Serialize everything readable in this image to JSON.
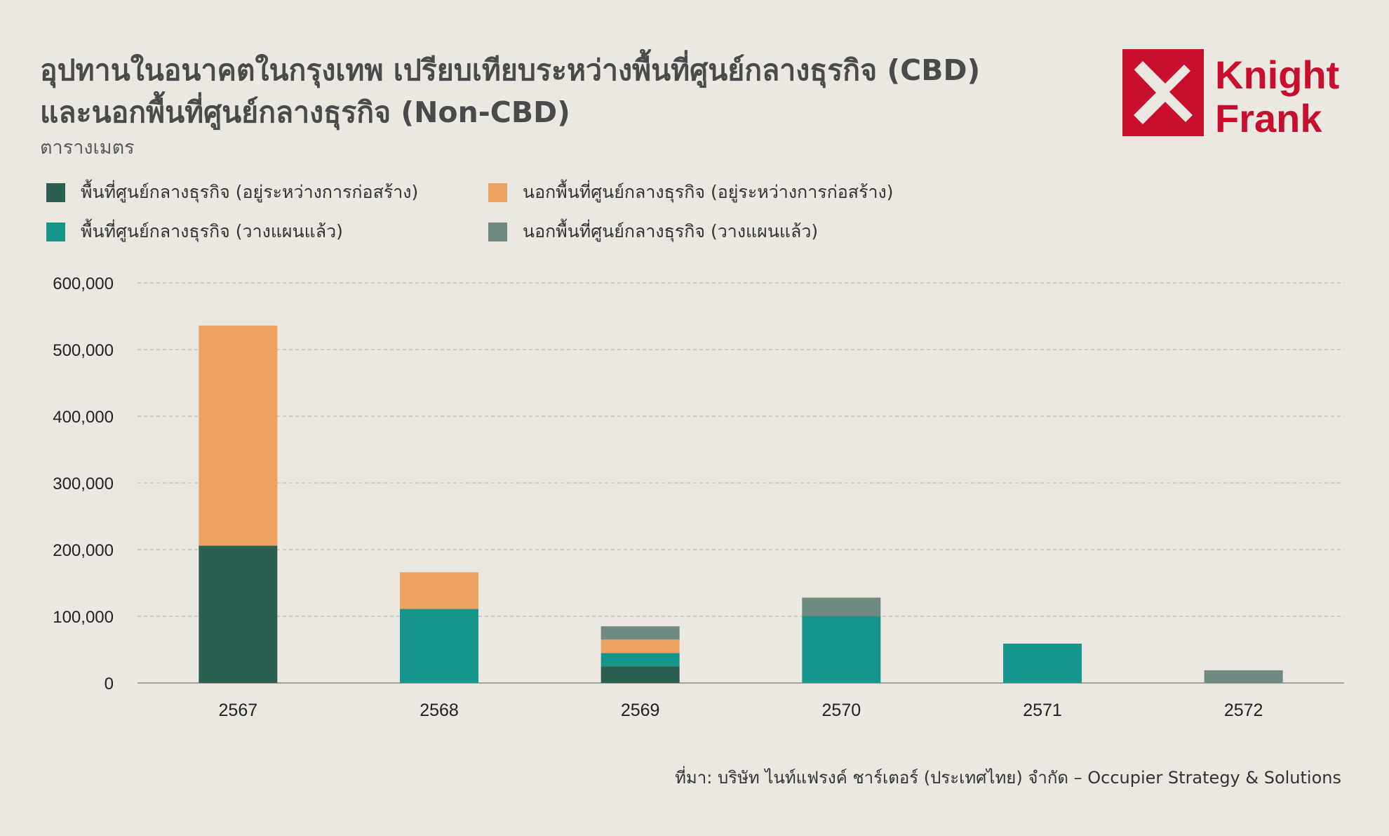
{
  "header": {
    "title_line1": "อุปทานในอนาคตในกรุงเทพ เปรียบเทียบระหว่างพื้นที่ศูนย์กลางธุรกิจ (CBD)",
    "title_line2": "และนอกพื้นที่ศูนย์กลางธุรกิจ (Non-CBD)",
    "subtitle": "ตารางเมตร"
  },
  "logo": {
    "line1": "Knight",
    "line2": "Frank",
    "color": "#c8102e"
  },
  "source": "ที่มา: บริษัท ไนท์แฟรงค์ ชาร์เตอร์ (ประเทศไทย) จำกัด – Occupier Strategy & Solutions",
  "chart_data": {
    "type": "bar",
    "stacked": true,
    "categories": [
      "2567",
      "2568",
      "2569",
      "2570",
      "2571",
      "2572"
    ],
    "series": [
      {
        "name": "พื้นที่ศูนย์กลางธุรกิจ (อยู่ระหว่างการก่อสร้าง)",
        "color": "#2c5f51",
        "values": [
          206000,
          0,
          25000,
          0,
          0,
          0
        ]
      },
      {
        "name": "พื้นที่ศูนย์กลางธุรกิจ (วางแผนแล้ว)",
        "color": "#16968a",
        "values": [
          0,
          111000,
          20000,
          100000,
          59000,
          0
        ]
      },
      {
        "name": "นอกพื้นที่ศูนย์กลางธุรกิจ (อยู่ระหว่างการก่อสร้าง)",
        "color": "#eba35f",
        "values": [
          330000,
          55000,
          20000,
          0,
          0,
          0
        ]
      },
      {
        "name": "นอกพื้นที่ศูนย์กลางธุรกิจ (วางแผนแล้ว)",
        "color": "#6f8a80",
        "values": [
          0,
          0,
          20000,
          28000,
          0,
          19000
        ]
      }
    ],
    "yticks": [
      "0",
      "100,000",
      "200,000",
      "300,000",
      "400,000",
      "500,000",
      "600,000"
    ],
    "ylim": [
      0,
      600000
    ],
    "grid": true,
    "legend_position": "top-left"
  }
}
